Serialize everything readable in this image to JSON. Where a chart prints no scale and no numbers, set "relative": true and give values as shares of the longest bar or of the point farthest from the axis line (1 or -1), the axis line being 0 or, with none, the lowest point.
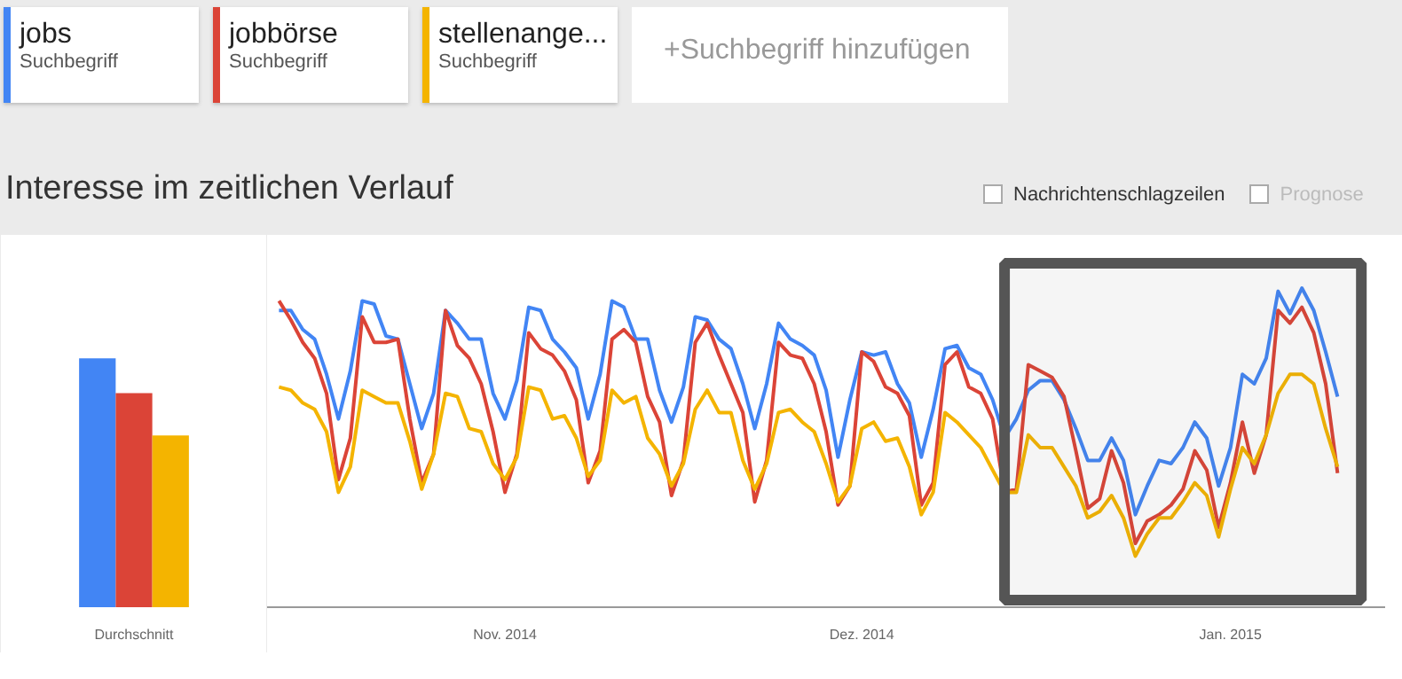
{
  "chart_data": [
    {
      "type": "bar",
      "categories": [
        "Durchschnitt"
      ],
      "relative": true,
      "series": [
        {
          "color": "#4285f4",
          "values": [
            1
          ]
        },
        {
          "color": "#db4437",
          "values": [
            0.86
          ]
        },
        {
          "color": "#f4b400",
          "values": [
            0.69
          ]
        }
      ]
    },
    {
      "type": "line",
      "title": "Interesse im zeitlichen Verlauf",
      "relative": true,
      "legend": "top",
      "annotations": [
        "Suchbegriff",
        "Suchbegriff",
        "Suchbegriff",
        "+Suchbegriff hinzufügen",
        "Nachrichtenschlagzeilen",
        "Prognose"
      ],
      "x": [
        "2014-10-13",
        "2014-10-14",
        "2014-10-15",
        "2014-10-16",
        "2014-10-17",
        "2014-10-18",
        "2014-10-19",
        "2014-10-20",
        "2014-10-21",
        "2014-10-22",
        "2014-10-23",
        "2014-10-24",
        "2014-10-25",
        "2014-10-26",
        "2014-10-27",
        "2014-10-28",
        "2014-10-29",
        "2014-10-30",
        "2014-10-31",
        "2014-11-01",
        "2014-11-02",
        "2014-11-03",
        "2014-11-04",
        "2014-11-05",
        "2014-11-06",
        "2014-11-07",
        "2014-11-08",
        "2014-11-09",
        "2014-11-10",
        "2014-11-11",
        "2014-11-12",
        "2014-11-13",
        "2014-11-14",
        "2014-11-15",
        "2014-11-16",
        "2014-11-17",
        "2014-11-18",
        "2014-11-19",
        "2014-11-20",
        "2014-11-21",
        "2014-11-22",
        "2014-11-23",
        "2014-11-24",
        "2014-11-25",
        "2014-11-26",
        "2014-11-27",
        "2014-11-28",
        "2014-11-29",
        "2014-11-30",
        "2014-12-01",
        "2014-12-02",
        "2014-12-03",
        "2014-12-04",
        "2014-12-05",
        "2014-12-06",
        "2014-12-07",
        "2014-12-08",
        "2014-12-09",
        "2014-12-10",
        "2014-12-11",
        "2014-12-12",
        "2014-12-13",
        "2014-12-14",
        "2014-12-15",
        "2014-12-16",
        "2014-12-17",
        "2014-12-18",
        "2014-12-19",
        "2014-12-20",
        "2014-12-21",
        "2014-12-22",
        "2014-12-23",
        "2014-12-24",
        "2014-12-25",
        "2014-12-26",
        "2014-12-27",
        "2014-12-28",
        "2014-12-29",
        "2014-12-30",
        "2014-12-31",
        "2015-01-01",
        "2015-01-02",
        "2015-01-03",
        "2015-01-04",
        "2015-01-05",
        "2015-01-06",
        "2015-01-07",
        "2015-01-08",
        "2015-01-09",
        "2015-01-10"
      ],
      "xlim": [
        "2014-10-12",
        "2015-01-14"
      ],
      "xticks": [
        {
          "value": "2014-11-01",
          "label": "Nov. 2014"
        },
        {
          "value": "2014-12-01",
          "label": "Dez. 2014"
        },
        {
          "value": "2015-01-01",
          "label": "Jan. 2015"
        }
      ],
      "tick_labels": "x",
      "bands": [
        {
          "axis": "x",
          "from": "2014-12-13",
          "to": "2015-01-12",
          "color": "#555555"
        }
      ],
      "series": [
        {
          "name": "jobs",
          "color": "#4285f4",
          "values": [
            0.93,
            0.93,
            0.87,
            0.84,
            0.73,
            0.59,
            0.74,
            0.96,
            0.95,
            0.85,
            0.84,
            0.7,
            0.56,
            0.67,
            0.93,
            0.89,
            0.84,
            0.84,
            0.67,
            0.59,
            0.71,
            0.94,
            0.93,
            0.84,
            0.8,
            0.75,
            0.59,
            0.73,
            0.96,
            0.94,
            0.84,
            0.84,
            0.68,
            0.58,
            0.69,
            0.91,
            0.9,
            0.84,
            0.81,
            0.7,
            0.56,
            0.7,
            0.89,
            0.84,
            0.82,
            0.79,
            0.68,
            0.47,
            0.65,
            0.8,
            0.79,
            0.8,
            0.7,
            0.64,
            0.47,
            0.62,
            0.81,
            0.82,
            0.75,
            0.73,
            0.65,
            0.53,
            0.59,
            0.68,
            0.71,
            0.71,
            0.65,
            0.56,
            0.46,
            0.46,
            0.53,
            0.46,
            0.29,
            0.38,
            0.46,
            0.45,
            0.5,
            0.58,
            0.53,
            0.38,
            0.5,
            0.73,
            0.7,
            0.78,
            0.99,
            0.92,
            1.0,
            0.93,
            0.8,
            0.66
          ]
        },
        {
          "name": "jobbörse",
          "color": "#db4437",
          "values": [
            0.96,
            0.9,
            0.83,
            0.78,
            0.67,
            0.4,
            0.53,
            0.91,
            0.83,
            0.83,
            0.84,
            0.59,
            0.39,
            0.48,
            0.93,
            0.82,
            0.78,
            0.7,
            0.55,
            0.36,
            0.48,
            0.86,
            0.81,
            0.79,
            0.74,
            0.65,
            0.39,
            0.49,
            0.84,
            0.87,
            0.83,
            0.66,
            0.58,
            0.35,
            0.46,
            0.83,
            0.89,
            0.79,
            0.7,
            0.61,
            0.33,
            0.46,
            0.83,
            0.79,
            0.78,
            0.7,
            0.55,
            0.32,
            0.38,
            0.8,
            0.77,
            0.69,
            0.67,
            0.6,
            0.32,
            0.39,
            0.76,
            0.8,
            0.69,
            0.67,
            0.59,
            0.36,
            0.37,
            0.76,
            0.74,
            0.72,
            0.66,
            0.49,
            0.31,
            0.34,
            0.49,
            0.39,
            0.2,
            0.27,
            0.29,
            0.32,
            0.37,
            0.49,
            0.43,
            0.25,
            0.39,
            0.58,
            0.42,
            0.54,
            0.93,
            0.89,
            0.94,
            0.86,
            0.7,
            0.42
          ]
        },
        {
          "name": "stellenange...",
          "color": "#f4b400",
          "values": [
            0.69,
            0.68,
            0.64,
            0.62,
            0.55,
            0.36,
            0.44,
            0.68,
            0.66,
            0.64,
            0.64,
            0.52,
            0.37,
            0.48,
            0.67,
            0.66,
            0.56,
            0.55,
            0.45,
            0.4,
            0.47,
            0.69,
            0.68,
            0.59,
            0.6,
            0.53,
            0.41,
            0.46,
            0.68,
            0.64,
            0.66,
            0.53,
            0.48,
            0.38,
            0.45,
            0.62,
            0.68,
            0.61,
            0.61,
            0.46,
            0.37,
            0.45,
            0.61,
            0.62,
            0.58,
            0.55,
            0.45,
            0.33,
            0.38,
            0.56,
            0.58,
            0.52,
            0.53,
            0.44,
            0.29,
            0.36,
            0.61,
            0.58,
            0.54,
            0.5,
            0.43,
            0.36,
            0.36,
            0.54,
            0.5,
            0.5,
            0.44,
            0.38,
            0.28,
            0.3,
            0.35,
            0.28,
            0.16,
            0.23,
            0.28,
            0.28,
            0.33,
            0.39,
            0.35,
            0.22,
            0.37,
            0.5,
            0.45,
            0.54,
            0.67,
            0.73,
            0.73,
            0.7,
            0.56,
            0.44
          ]
        }
      ]
    }
  ]
}
